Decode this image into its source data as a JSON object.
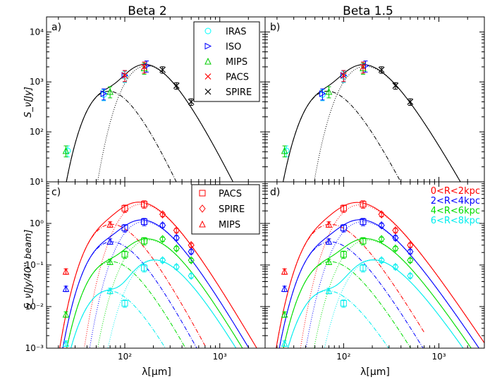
{
  "chart_data": {
    "type": "scatter",
    "x_axis": {
      "label": "λ[μm]",
      "scale": "log",
      "lim": [
        15,
        3000
      ],
      "tick_labels": [
        {
          "value": 100,
          "text": "10²"
        },
        {
          "value": 1000,
          "text": "10³"
        }
      ]
    },
    "columns": [
      {
        "title": "Beta 2",
        "beta": 2
      },
      {
        "title": "Beta 1.5",
        "beta": 1.5
      }
    ],
    "rows": [
      {
        "ylabel": "S_ν[Jy]",
        "scale": "log",
        "ylim": [
          10,
          20000
        ],
        "tick_labels": [
          {
            "value": 10,
            "text": "10¹"
          },
          {
            "value": 100,
            "text": "10²"
          },
          {
            "value": 1000,
            "text": "10³"
          },
          {
            "value": 10000,
            "text": "10⁴"
          }
        ]
      },
      {
        "ylabel": "S_ν[Jy/40'' beam]",
        "scale": "log",
        "ylim": [
          0.001,
          10
        ],
        "tick_labels": [
          {
            "value": 0.001,
            "text": "10⁻³"
          },
          {
            "value": 0.01,
            "text": "10⁻²"
          },
          {
            "value": 0.1,
            "text": "10⁻¹"
          },
          {
            "value": 1,
            "text": "10⁰"
          }
        ]
      }
    ],
    "panel_labels": [
      "a)",
      "b)",
      "c)",
      "d)"
    ],
    "legend_top": {
      "placement": "top-right",
      "entries": [
        {
          "label": "IRAS",
          "marker": "circle",
          "color": "#00ffff"
        },
        {
          "label": "ISO",
          "marker": "triangle-right",
          "color": "#0000ff"
        },
        {
          "label": "MIPS",
          "marker": "triangle-up",
          "color": "#00cc00"
        },
        {
          "label": "PACS",
          "marker": "x",
          "color": "#ff0000"
        },
        {
          "label": "SPIRE",
          "marker": "x",
          "color": "#000000"
        }
      ]
    },
    "legend_bottom": {
      "placement": "top-right",
      "entries": [
        {
          "label": "PACS",
          "marker": "square",
          "color": "#ff0000"
        },
        {
          "label": "SPIRE",
          "marker": "diamond",
          "color": "#ff0000"
        },
        {
          "label": "MIPS",
          "marker": "triangle-up",
          "color": "#ff0000"
        }
      ]
    },
    "radial_labels": [
      {
        "label": "0<R<2kpc",
        "color": "#ff0000"
      },
      {
        "label": "2<R<4kpc",
        "color": "#0000ff"
      },
      {
        "label": "4<R<6kpc",
        "color": "#00dd00"
      },
      {
        "label": "6<R<8kpc",
        "color": "#00eeee"
      }
    ],
    "top_series": [
      {
        "name": "IRAS",
        "marker": "circle",
        "color": "#00ffff",
        "x": [
          25,
          60,
          100
        ],
        "y": [
          42,
          560,
          1300
        ]
      },
      {
        "name": "ISO",
        "marker": "triangle-right",
        "color": "#0000ff",
        "x": [
          60,
          100,
          170
        ],
        "y": [
          580,
          1350,
          2100
        ]
      },
      {
        "name": "MIPS",
        "marker": "triangle-up",
        "color": "#00cc00",
        "x": [
          24,
          70,
          160
        ],
        "y": [
          42,
          640,
          1900
        ]
      },
      {
        "name": "PACS",
        "marker": "x",
        "color": "#ff0000",
        "x": [
          100,
          160
        ],
        "y": [
          1350,
          2000
        ]
      },
      {
        "name": "SPIRE",
        "marker": "x",
        "color": "#000000",
        "x": [
          250,
          350,
          500
        ],
        "y": [
          1750,
          840,
          400
        ]
      }
    ],
    "top_models": [
      {
        "beta": 2,
        "warm": {
          "amp": 650,
          "peak": 70,
          "wmin": 15,
          "wmax": 520
        },
        "cold": {
          "amp": 2100,
          "peak": 175,
          "wmin": 45,
          "wmax": 3000
        }
      },
      {
        "beta": 1.5,
        "warm": {
          "amp": 650,
          "peak": 70,
          "wmin": 15,
          "wmax": 520
        },
        "cold": {
          "amp": 2050,
          "peak": 175,
          "wmin": 45,
          "wmax": 3000
        }
      }
    ],
    "bottom_series": [
      {
        "region": "0<R<2kpc",
        "color": "#ff0000",
        "mips": {
          "x": [
            24,
            70
          ],
          "y": [
            0.07,
            0.95
          ]
        },
        "pacs": {
          "x": [
            100,
            160
          ],
          "y": [
            2.3,
            2.9
          ]
        },
        "spire": {
          "x": [
            250,
            350,
            500
          ],
          "y": [
            1.65,
            0.68,
            0.3
          ]
        },
        "model_beta2": {
          "warm": {
            "amp": 0.95,
            "peak": 75
          },
          "cold": {
            "amp": 2.9,
            "peak": 155
          }
        },
        "model_beta1_5": {
          "warm": {
            "amp": 0.95,
            "peak": 75
          },
          "cold": {
            "amp": 2.8,
            "peak": 155
          }
        }
      },
      {
        "region": "2<R<4kpc",
        "color": "#0000ff",
        "mips": {
          "x": [
            24,
            70
          ],
          "y": [
            0.027,
            0.37
          ]
        },
        "pacs": {
          "x": [
            100,
            160
          ],
          "y": [
            0.78,
            1.1
          ]
        },
        "spire": {
          "x": [
            250,
            350,
            500
          ],
          "y": [
            0.9,
            0.45,
            0.21
          ]
        },
        "model_beta2": {
          "warm": {
            "amp": 0.36,
            "peak": 75
          },
          "cold": {
            "amp": 1.1,
            "peak": 165
          }
        },
        "model_beta1_5": {
          "warm": {
            "amp": 0.36,
            "peak": 75
          },
          "cold": {
            "amp": 1.1,
            "peak": 165
          }
        }
      },
      {
        "region": "4<R<6kpc",
        "color": "#00dd00",
        "mips": {
          "x": [
            24,
            70
          ],
          "y": [
            0.0065,
            0.12
          ]
        },
        "pacs": {
          "x": [
            100,
            160
          ],
          "y": [
            0.18,
            0.38
          ]
        },
        "spire": {
          "x": [
            250,
            350,
            500
          ],
          "y": [
            0.42,
            0.25,
            0.13
          ]
        },
        "model_beta2": {
          "warm": {
            "amp": 0.12,
            "peak": 75
          },
          "cold": {
            "amp": 0.4,
            "peak": 185
          }
        },
        "model_beta1_5": {
          "warm": {
            "amp": 0.12,
            "peak": 75
          },
          "cold": {
            "amp": 0.4,
            "peak": 185
          }
        }
      },
      {
        "region": "6<R<8kpc",
        "color": "#00eeee",
        "mips": {
          "x": [
            24,
            70
          ],
          "y": [
            0.0013,
            0.024
          ]
        },
        "pacs": {
          "x": [
            100,
            160
          ],
          "y": [
            0.012,
            0.085
          ]
        },
        "spire": {
          "x": [
            250,
            350,
            500
          ],
          "y": [
            0.13,
            0.09,
            0.055
          ]
        },
        "model_beta2": {
          "warm": {
            "amp": 0.024,
            "peak": 70
          },
          "cold": {
            "amp": 0.13,
            "peak": 215
          }
        },
        "model_beta1_5": {
          "warm": {
            "amp": 0.024,
            "peak": 70
          },
          "cold": {
            "amp": 0.13,
            "peak": 215
          }
        }
      }
    ]
  }
}
